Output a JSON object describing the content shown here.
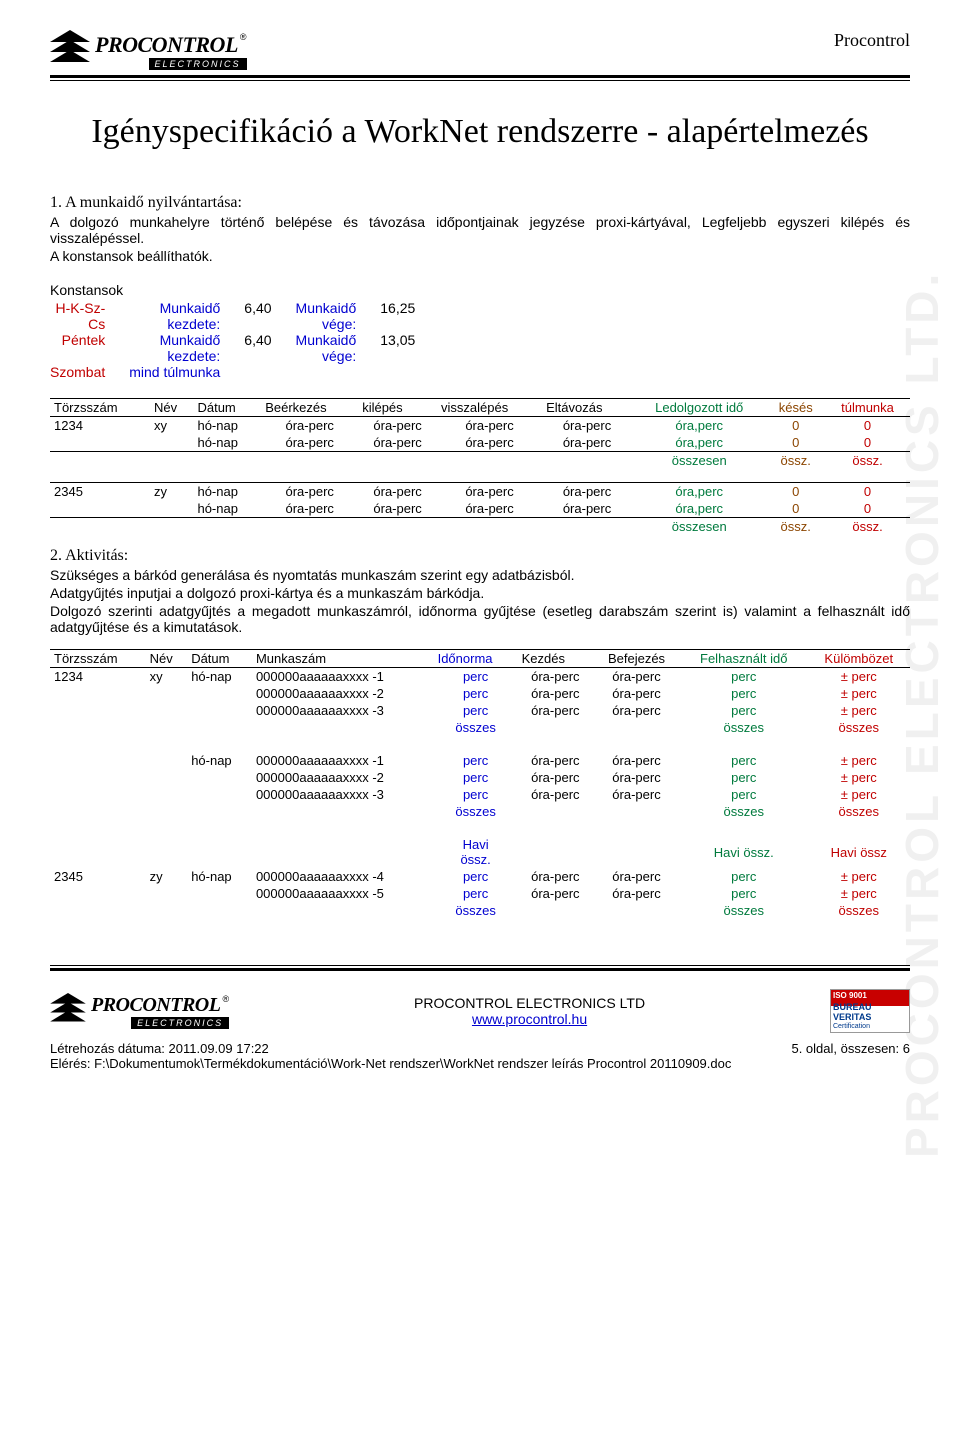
{
  "header": {
    "brand": "PROCONTROL",
    "brand_sub": "ELECTRONICS",
    "right": "Procontrol"
  },
  "watermark": "PROCONTROL ELECTRONICS LTD.",
  "title": "Igényspecifikáció a WorkNet rendszerre - alapértelmezés",
  "section1": {
    "head": "1. A munkaidő nyilvántartása:",
    "p1": "A dolgozó munkahelyre történő belépése és távozása időpontjainak jegyzése proxi-kártyával, Legfeljebb egyszeri kilépés és visszalépéssel.",
    "p2": "A konstansok beállíthatók."
  },
  "konst": {
    "label": "Konstansok",
    "rows": [
      {
        "day": "H-K-Sz-Cs",
        "k_lbl": "Munkaidő kezdete:",
        "k_val": "6,40",
        "v_lbl": "Munkaidő vége:",
        "v_val": "16,25"
      },
      {
        "day": "Péntek",
        "k_lbl": "Munkaidő kezdete:",
        "k_val": "6,40",
        "v_lbl": "Munkaidő vége:",
        "v_val": "13,05"
      },
      {
        "day": "Szombat",
        "k_lbl": "mind túlmunka",
        "k_val": "",
        "v_lbl": "",
        "v_val": ""
      }
    ]
  },
  "table1": {
    "headers": [
      "Törzsszám",
      "Név",
      "Dátum",
      "Beérkezés",
      "kilépés",
      "visszalépés",
      "Eltávozás",
      "Ledolgozott idő",
      "késés",
      "túlmunka"
    ],
    "header_colors": [
      "",
      "",
      "",
      "",
      "",
      "",
      "",
      "green",
      "brown",
      "red"
    ],
    "groups": [
      {
        "rows": [
          [
            "1234",
            "xy",
            "hó-nap",
            "óra-perc",
            "óra-perc",
            "óra-perc",
            "óra-perc",
            "óra,perc",
            "0",
            "0"
          ],
          [
            "",
            "",
            "hó-nap",
            "óra-perc",
            "óra-perc",
            "óra-perc",
            "óra-perc",
            "óra,perc",
            "0",
            "0"
          ],
          [
            "",
            "",
            "",
            "",
            "",
            "",
            "",
            "összesen",
            "össz.",
            "össz."
          ]
        ]
      },
      {
        "rows": [
          [
            "2345",
            "zy",
            "hó-nap",
            "óra-perc",
            "óra-perc",
            "óra-perc",
            "óra-perc",
            "óra,perc",
            "0",
            "0"
          ],
          [
            "",
            "",
            "hó-nap",
            "óra-perc",
            "óra-perc",
            "óra-perc",
            "óra-perc",
            "óra,perc",
            "0",
            "0"
          ],
          [
            "",
            "",
            "",
            "",
            "",
            "",
            "",
            "összesen",
            "össz.",
            "össz."
          ]
        ]
      }
    ]
  },
  "section2": {
    "head": "2. Aktivitás:",
    "p1": "Szükséges a bárkód generálása és nyomtatás munkaszám szerint egy adatbázisból.",
    "p2": "Adatgyűjtés inputjai a dolgozó proxi-kártya és a munkaszám bárkódja.",
    "p3": "Dolgozó szerinti adatgyűjtés a megadott munkaszámról, időnorma gyűjtése (esetleg darabszám szerint is) valamint a felhasznált idő adatgyűjtése és a kimutatások."
  },
  "table2": {
    "headers": [
      "Törzsszám",
      "Név",
      "Dátum",
      "Munkaszám",
      "Időnorma",
      "Kezdés",
      "Befejezés",
      "Felhasznált idő",
      "Külömbözet"
    ],
    "header_colors": [
      "",
      "",
      "",
      "",
      "blue",
      "",
      "",
      "green",
      "red"
    ],
    "groups": [
      {
        "id": "1234",
        "nev": "xy",
        "blocks": [
          {
            "datm": "hó-nap",
            "rows": [
              [
                "000000aaaaaaxxxx -1",
                "perc",
                "óra-perc",
                "óra-perc",
                "perc",
                "± perc"
              ],
              [
                "000000aaaaaaxxxx -2",
                "perc",
                "óra-perc",
                "óra-perc",
                "perc",
                "± perc"
              ],
              [
                "000000aaaaaaxxxx -3",
                "perc",
                "óra-perc",
                "óra-perc",
                "perc",
                "± perc"
              ]
            ],
            "sum": [
              "összes",
              "",
              "",
              "összes",
              "összes"
            ]
          },
          {
            "datm": "hó-nap",
            "rows": [
              [
                "000000aaaaaaxxxx -1",
                "perc",
                "óra-perc",
                "óra-perc",
                "perc",
                "± perc"
              ],
              [
                "000000aaaaaaxxxx -2",
                "perc",
                "óra-perc",
                "óra-perc",
                "perc",
                "± perc"
              ],
              [
                "000000aaaaaaxxxx -3",
                "perc",
                "óra-perc",
                "óra-perc",
                "perc",
                "± perc"
              ]
            ],
            "sum": [
              "összes",
              "",
              "",
              "összes",
              "összes"
            ]
          }
        ],
        "monthly": [
          "Havi össz.",
          "",
          "",
          "Havi össz.",
          "Havi össz"
        ]
      },
      {
        "id": "2345",
        "nev": "zy",
        "blocks": [
          {
            "datm": "hó-nap",
            "rows": [
              [
                "000000aaaaaaxxxx -4",
                "perc",
                "óra-perc",
                "óra-perc",
                "perc",
                "± perc"
              ],
              [
                "000000aaaaaaxxxx -5",
                "perc",
                "óra-perc",
                "óra-perc",
                "perc",
                "± perc"
              ]
            ],
            "sum": [
              "összes",
              "",
              "",
              "összes",
              "összes"
            ]
          }
        ]
      }
    ]
  },
  "footer": {
    "company": "PROCONTROL ELECTRONICS LTD",
    "url": "www.procontrol.hu",
    "cert_top": "ISO 9001",
    "cert_mid": "BUREAU VERITAS",
    "cert_bot": "Certification",
    "meta_left": "Létrehozás dátuma: 2011.09.09 17:22",
    "meta_right": "5. oldal, összesen: 6",
    "path": "Elérés: F:\\Dokumentumok\\Termékdokumentáció\\Work-Net rendszer\\WorkNet rendszer leírás Procontrol 20110909.doc"
  }
}
